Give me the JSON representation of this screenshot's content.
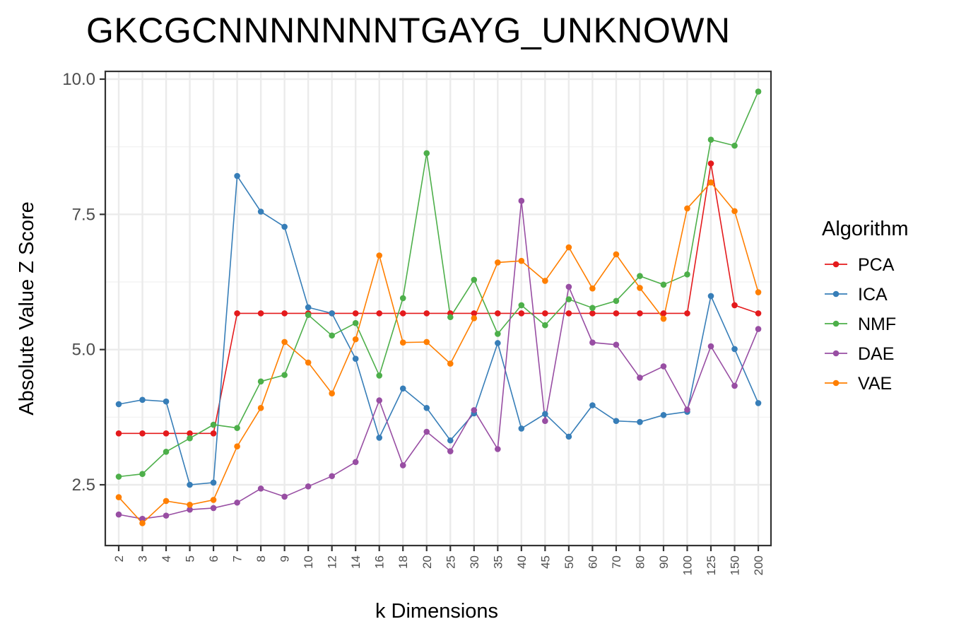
{
  "chart_data": {
    "type": "line",
    "title": "GKCGCNNNNNNNTGAYG_UNKNOWN",
    "xlabel": "k Dimensions",
    "ylabel": "Absolute Value Z Score",
    "categories": [
      "2",
      "3",
      "4",
      "5",
      "6",
      "7",
      "8",
      "9",
      "10",
      "12",
      "14",
      "16",
      "18",
      "20",
      "25",
      "30",
      "35",
      "40",
      "45",
      "50",
      "60",
      "70",
      "80",
      "90",
      "100",
      "125",
      "150",
      "200"
    ],
    "yticks": [
      2.5,
      5.0,
      7.5,
      10.0
    ],
    "ytick_labels": [
      "2.5",
      "5.0",
      "7.5",
      "10.0"
    ],
    "ylim": [
      1.4,
      10.15
    ],
    "grid": true,
    "legend": {
      "title": "Algorithm",
      "position": "right"
    },
    "series": [
      {
        "name": "PCA",
        "color": "#e41a1c",
        "values": [
          3.45,
          3.45,
          3.45,
          3.45,
          3.45,
          5.67,
          5.67,
          5.67,
          5.67,
          5.67,
          5.67,
          5.67,
          5.67,
          5.67,
          5.67,
          5.67,
          5.67,
          5.67,
          5.67,
          5.67,
          5.67,
          5.67,
          5.67,
          5.67,
          5.67,
          8.44,
          5.82,
          5.67
        ]
      },
      {
        "name": "ICA",
        "color": "#377eb8",
        "values": [
          3.99,
          4.07,
          4.04,
          2.5,
          2.54,
          8.21,
          7.55,
          7.27,
          5.78,
          5.67,
          4.83,
          3.37,
          4.28,
          3.92,
          3.32,
          3.82,
          5.12,
          3.54,
          3.81,
          3.39,
          3.97,
          3.68,
          3.66,
          3.79,
          3.85,
          5.99,
          5.01,
          4.01
        ]
      },
      {
        "name": "NMF",
        "color": "#4daf4a",
        "values": [
          2.65,
          2.7,
          3.11,
          3.36,
          3.61,
          3.55,
          4.41,
          4.53,
          5.64,
          5.26,
          5.49,
          4.52,
          5.95,
          8.63,
          5.6,
          6.29,
          5.29,
          5.82,
          5.45,
          5.93,
          5.77,
          5.9,
          6.36,
          6.2,
          6.39,
          8.88,
          8.77,
          9.77
        ]
      },
      {
        "name": "DAE",
        "color": "#984ea3",
        "values": [
          1.95,
          1.87,
          1.93,
          2.04,
          2.07,
          2.17,
          2.43,
          2.28,
          2.47,
          2.66,
          2.92,
          4.06,
          2.86,
          3.48,
          3.12,
          3.88,
          3.16,
          7.75,
          3.68,
          6.16,
          5.13,
          5.09,
          4.48,
          4.69,
          3.89,
          5.06,
          4.33,
          5.38
        ]
      },
      {
        "name": "VAE",
        "color": "#ff7f00",
        "values": [
          2.27,
          1.79,
          2.2,
          2.13,
          2.22,
          3.21,
          3.92,
          5.14,
          4.76,
          4.19,
          5.19,
          6.74,
          5.13,
          5.14,
          4.74,
          5.58,
          6.61,
          6.64,
          6.27,
          6.89,
          6.13,
          6.76,
          6.14,
          5.57,
          7.61,
          8.09,
          7.56,
          6.06
        ]
      }
    ]
  }
}
